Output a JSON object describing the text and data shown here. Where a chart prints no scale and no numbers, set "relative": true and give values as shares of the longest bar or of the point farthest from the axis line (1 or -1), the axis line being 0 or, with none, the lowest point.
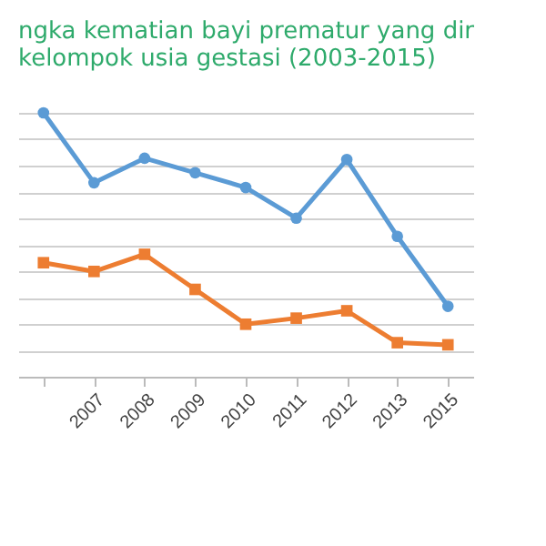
{
  "chart_data": {
    "type": "line",
    "title": "ngka kematian bayi prematur yang dir\nkelompok usia gestasi (2003-2015)",
    "categories": [
      null,
      "2007",
      "2008",
      "2009",
      "2010",
      "2011",
      "2012",
      "2013",
      "2015"
    ],
    "relative": true,
    "grid": "y",
    "series": [
      {
        "color": "#5b9bd5",
        "marker": "circle",
        "values": [
          1,
          0.735,
          0.828,
          0.773,
          0.717,
          0.601,
          0.823,
          0.532,
          0.267
        ]
      },
      {
        "color": "#ed7d31",
        "marker": "square",
        "values": [
          0.432,
          0.399,
          0.464,
          0.331,
          0.199,
          0.222,
          0.25,
          0.129,
          0.121
        ]
      }
    ]
  }
}
